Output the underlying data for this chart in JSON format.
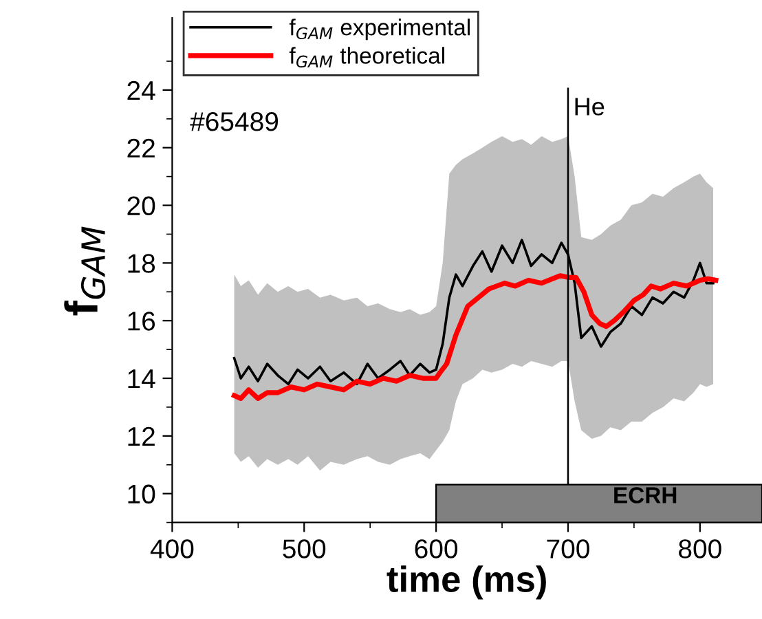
{
  "chart_data": {
    "type": "line",
    "xlabel": "time (ms)",
    "ylabel": "f$_{GAM}$",
    "xlim": [
      400,
      847
    ],
    "xticks": [
      400,
      500,
      600,
      700,
      800
    ],
    "ylim": [
      9,
      26.5
    ],
    "yticks": [
      10,
      12,
      14,
      16,
      18,
      20,
      22,
      24
    ],
    "grid": false,
    "legend": "top left",
    "marker": "none",
    "line_style": "solid",
    "series": [
      {
        "name": "f$_{GAM}$ experimental",
        "color": "#000000",
        "x": [
          447,
          452,
          458,
          465,
          472,
          480,
          488,
          495,
          503,
          512,
          520,
          530,
          540,
          548,
          556,
          565,
          573,
          580,
          588,
          595,
          600,
          605,
          610,
          615,
          620,
          628,
          635,
          642,
          650,
          658,
          665,
          672,
          680,
          688,
          695,
          700,
          705,
          710,
          718,
          725,
          732,
          740,
          748,
          756,
          764,
          772,
          780,
          788,
          795,
          800,
          805,
          810
        ],
        "values": [
          14.7,
          14.0,
          14.4,
          13.9,
          14.5,
          14.1,
          13.8,
          14.3,
          14.0,
          14.4,
          13.9,
          14.2,
          13.8,
          14.5,
          14.0,
          14.3,
          14.6,
          14.1,
          14.5,
          14.2,
          14.3,
          15.2,
          16.8,
          17.6,
          17.2,
          17.9,
          18.4,
          17.7,
          18.6,
          18.0,
          18.8,
          17.9,
          18.3,
          18.0,
          18.7,
          18.3,
          17.3,
          15.4,
          15.8,
          15.1,
          15.6,
          15.9,
          16.5,
          16.2,
          16.8,
          16.6,
          17.0,
          16.8,
          17.4,
          18.0,
          17.3,
          17.3
        ],
        "lower": [
          11.4,
          11.1,
          11.3,
          10.9,
          11.2,
          11.0,
          11.2,
          11.0,
          11.3,
          10.8,
          11.1,
          11.0,
          11.2,
          11.3,
          11.1,
          11.0,
          11.2,
          11.3,
          11.4,
          11.2,
          11.5,
          11.8,
          12.2,
          13.2,
          13.8,
          14.0,
          14.3,
          14.2,
          14.3,
          14.5,
          14.4,
          14.6,
          14.5,
          14.4,
          14.6,
          14.6,
          13.2,
          12.2,
          11.9,
          12.0,
          12.3,
          12.2,
          12.5,
          12.5,
          12.8,
          13.0,
          13.3,
          13.2,
          13.5,
          13.8,
          13.7,
          13.8
        ],
        "upper": [
          17.6,
          17.2,
          17.4,
          16.9,
          17.3,
          17.0,
          17.2,
          17.0,
          17.1,
          16.8,
          16.9,
          16.7,
          16.8,
          16.5,
          16.6,
          16.4,
          16.3,
          16.4,
          16.2,
          16.3,
          16.5,
          18.0,
          21.1,
          21.4,
          21.6,
          21.8,
          22.0,
          22.2,
          22.4,
          22.2,
          22.3,
          22.1,
          22.4,
          22.2,
          22.3,
          22.4,
          21.0,
          18.9,
          18.8,
          19.0,
          19.3,
          19.5,
          20.0,
          20.1,
          20.4,
          20.3,
          20.6,
          20.8,
          21.0,
          21.1,
          20.8,
          20.6
        ]
      },
      {
        "name": "f$_{GAM}$ theoretical",
        "color": "#ff0000",
        "x": [
          447,
          452,
          458,
          465,
          472,
          480,
          490,
          500,
          510,
          520,
          530,
          540,
          550,
          560,
          570,
          580,
          590,
          600,
          603,
          608,
          615,
          624,
          632,
          640,
          652,
          660,
          670,
          680,
          694,
          700,
          706,
          712,
          718,
          724,
          729,
          735,
          742,
          750,
          757,
          763,
          770,
          780,
          790,
          800,
          806,
          812
        ],
        "values": [
          13.4,
          13.3,
          13.6,
          13.3,
          13.5,
          13.5,
          13.7,
          13.6,
          13.8,
          13.7,
          13.6,
          13.9,
          13.8,
          14.0,
          13.9,
          14.1,
          14.0,
          14.0,
          14.2,
          14.5,
          15.5,
          16.5,
          16.8,
          17.1,
          17.3,
          17.2,
          17.4,
          17.3,
          17.56,
          17.5,
          17.5,
          17.0,
          16.2,
          15.9,
          15.8,
          16.0,
          16.3,
          16.7,
          16.9,
          17.2,
          17.1,
          17.3,
          17.2,
          17.4,
          17.45,
          17.4
        ]
      }
    ],
    "ref_lines": [
      {
        "axis": "x",
        "value": 700,
        "label": "He",
        "color": "#000000"
      }
    ],
    "bands": [
      {
        "axis": "x",
        "from": 600,
        "to": 847,
        "label": "ECRH",
        "color": "#808080"
      }
    ],
    "annotations": [
      "#65489"
    ]
  }
}
